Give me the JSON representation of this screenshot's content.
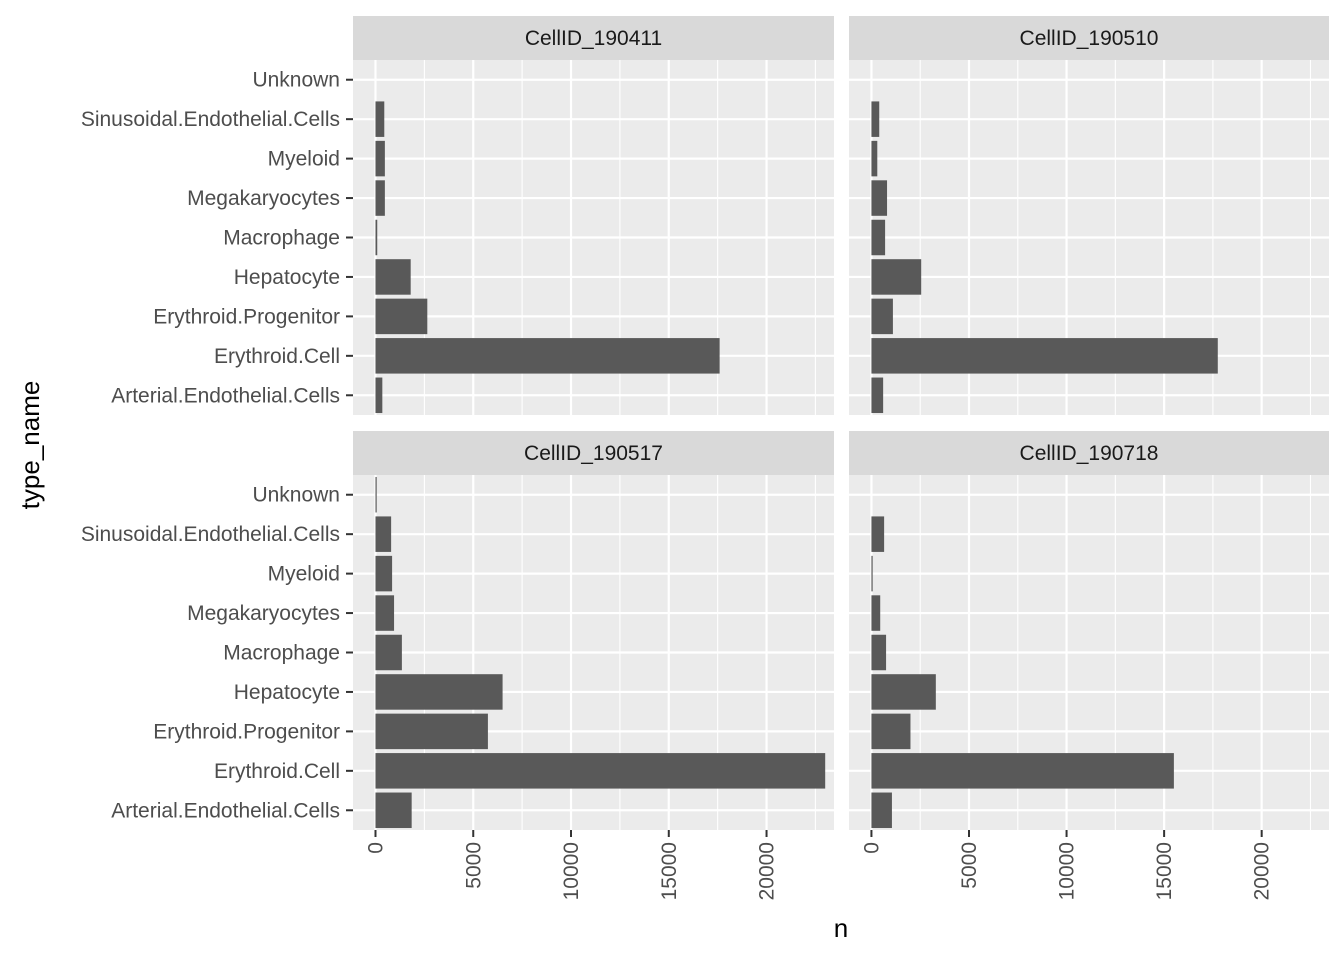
{
  "chart_data": {
    "type": "bar",
    "orientation": "horizontal",
    "facet": "wrap",
    "xlabel": "n",
    "ylabel": "type_name",
    "xlim": [
      0,
      23000
    ],
    "x_ticks": [
      0,
      5000,
      10000,
      15000,
      20000
    ],
    "grid": true,
    "legend": "none",
    "categories": [
      "Arterial.Endothelial.Cells",
      "Erythroid.Cell",
      "Erythroid.Progenitor",
      "Hepatocyte",
      "Macrophage",
      "Megakaryocytes",
      "Myeloid",
      "Sinusoidal.Endothelial.Cells",
      "Unknown"
    ],
    "panels": [
      {
        "title": "CellID_190411",
        "values": [
          350,
          17600,
          2650,
          1800,
          90,
          480,
          480,
          450,
          0
        ]
      },
      {
        "title": "CellID_190510",
        "values": [
          600,
          17750,
          1100,
          2550,
          700,
          800,
          300,
          400,
          0
        ]
      },
      {
        "title": "CellID_190517",
        "values": [
          1850,
          23000,
          5750,
          6500,
          1350,
          950,
          850,
          800,
          50
        ]
      },
      {
        "title": "CellID_190718",
        "values": [
          1050,
          15500,
          2000,
          3300,
          750,
          450,
          60,
          650,
          0
        ]
      }
    ],
    "colors": {
      "bar": "#595959",
      "panel_bg": "#ebebeb",
      "strip_bg": "#d9d9d9",
      "grid": "#ffffff",
      "text": "#4d4d4d",
      "title": "#1a1a1a"
    }
  }
}
